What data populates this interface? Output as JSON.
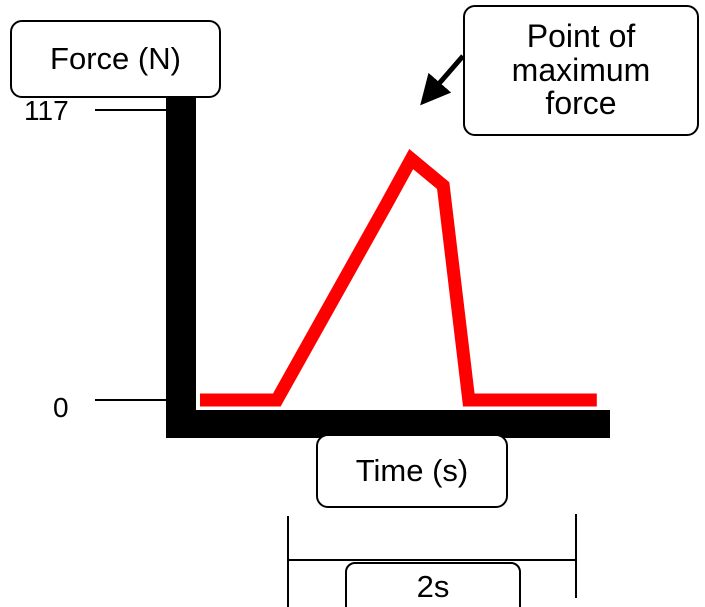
{
  "chart_data": {
    "type": "line",
    "ylabel": "Force (N)",
    "xlabel": "Time (s)",
    "ylim": [
      0,
      117
    ],
    "yticks": [
      {
        "value": 117,
        "label": "117"
      },
      {
        "value": 0,
        "label": "0"
      }
    ],
    "series": [
      {
        "color": "#ff0000",
        "x": [
          0,
          0.96,
          2.36,
          2.64,
          3.04,
          3.36,
          3.72,
          4.96
        ],
        "y": [
          0,
          0,
          80.7,
          97.2,
          86.5,
          0,
          0,
          0
        ]
      }
    ],
    "annotations": {
      "peak": "Point of maximum force",
      "duration": "2s",
      "duration_range": [
        1,
        3.36
      ]
    },
    "grid": false
  },
  "colors": {
    "axis": "#000000",
    "line": "#ff0000"
  }
}
